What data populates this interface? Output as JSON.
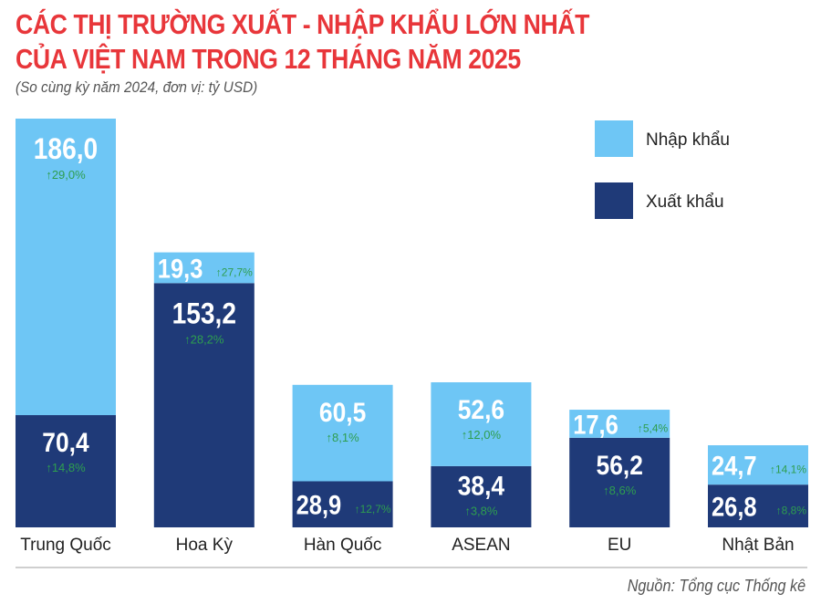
{
  "chart_data": {
    "type": "bar",
    "stacked": true,
    "title_lines": [
      "CÁC THỊ TRƯỜNG XUẤT - NHẬP KHẨU LỚN NHẤT",
      "CỦA VIỆT NAM TRONG 12 THÁNG NĂM 2025"
    ],
    "subtitle": "(So cùng kỳ năm 2024, đơn vị: tỷ USD)",
    "categories": [
      "Trung Quốc",
      "Hoa Kỳ",
      "Hàn Quốc",
      "ASEAN",
      "EU",
      "Nhật Bản"
    ],
    "series": [
      {
        "name": "Xuất khẩu",
        "color": "#1f3a78",
        "values": [
          70.4,
          153.2,
          28.9,
          38.4,
          56.2,
          26.8
        ],
        "value_labels": [
          "70,4",
          "153,2",
          "28,9",
          "38,4",
          "56,2",
          "26,8"
        ],
        "growth_labels": [
          "14,8%",
          "28,2%",
          "12,7%",
          "3,8%",
          "8,6%",
          "8,8%"
        ]
      },
      {
        "name": "Nhập khẩu",
        "color": "#6ec6f5",
        "values": [
          186.0,
          19.3,
          60.5,
          52.6,
          17.6,
          24.7
        ],
        "value_labels": [
          "186,0",
          "19,3",
          "60,5",
          "52,6",
          "17,6",
          "24,7"
        ],
        "growth_labels": [
          "29,0%",
          "27,7%",
          "8,1%",
          "12,0%",
          "5,4%",
          "14,1%"
        ]
      }
    ],
    "growth_color": "#2e9e4f",
    "growth_icon": "arrow-up-icon",
    "legend": [
      "Nhập khẩu",
      "Xuất khẩu"
    ],
    "legend_position": "top-right",
    "grid": false,
    "ylim": [
      0,
      256.4
    ]
  },
  "source": "Nguồn: Tổng cục Thống kê"
}
